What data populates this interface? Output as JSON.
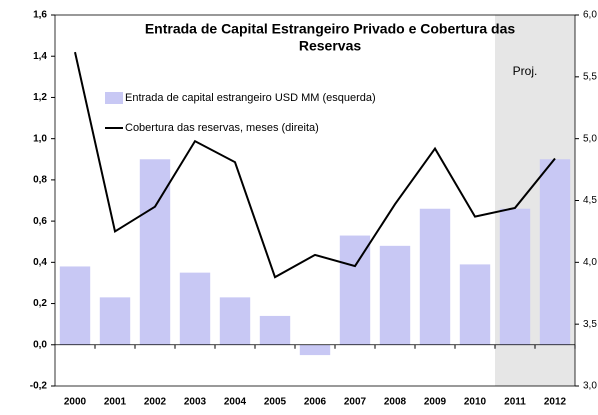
{
  "chart_data": {
    "type": "bar_line",
    "title": [
      "Entrada de Capital Estrangeiro Privado e Cobertura das",
      "Reservas"
    ],
    "categories": [
      "2000",
      "2001",
      "2002",
      "2003",
      "2004",
      "2005",
      "2006",
      "2007",
      "2008",
      "2009",
      "2010",
      "2011",
      "2012"
    ],
    "series": [
      {
        "name": "Entrada de capital estrangeiro USD MM (esquerda)",
        "type": "bar",
        "color": "#c8c8f4",
        "axis": "y",
        "values": [
          0.38,
          0.23,
          0.9,
          0.35,
          0.23,
          0.14,
          -0.05,
          0.53,
          0.48,
          0.66,
          0.39,
          0.66,
          0.9
        ]
      },
      {
        "name": "Cobertura das reservas, meses (direita)",
        "type": "line",
        "color": "#000000",
        "axis": "y2",
        "values": [
          5.7,
          4.25,
          4.45,
          4.98,
          4.81,
          3.88,
          4.06,
          3.97,
          4.47,
          4.92,
          4.37,
          4.44,
          4.84
        ]
      }
    ],
    "annotations": [
      {
        "text": "Proj.",
        "from": "2011",
        "color": "#e6e6e6"
      }
    ],
    "ylim": [
      -0.2,
      1.6
    ],
    "yticks": [
      {
        "value": -0.2,
        "label": "-0,2"
      },
      {
        "value": 0,
        "label": "0,0"
      },
      {
        "value": 0.2,
        "label": "0,2"
      },
      {
        "value": 0.4,
        "label": "0,4"
      },
      {
        "value": 0.6,
        "label": "0,6"
      },
      {
        "value": 0.8,
        "label": "0,8"
      },
      {
        "value": 1,
        "label": "1,0"
      },
      {
        "value": 1.2,
        "label": "1,2"
      },
      {
        "value": 1.4,
        "label": "1,4"
      },
      {
        "value": 1.6,
        "label": "1,6"
      }
    ],
    "y2lim": [
      3,
      6
    ],
    "y2ticks": [
      {
        "value": 3,
        "label": "3,0"
      },
      {
        "value": 3.5,
        "label": "3,5"
      },
      {
        "value": 4,
        "label": "4,0"
      },
      {
        "value": 4.5,
        "label": "4,5"
      },
      {
        "value": 5,
        "label": "5,0"
      },
      {
        "value": 5.5,
        "label": "5,5"
      },
      {
        "value": 6,
        "label": "6,0"
      }
    ],
    "grid": false
  }
}
